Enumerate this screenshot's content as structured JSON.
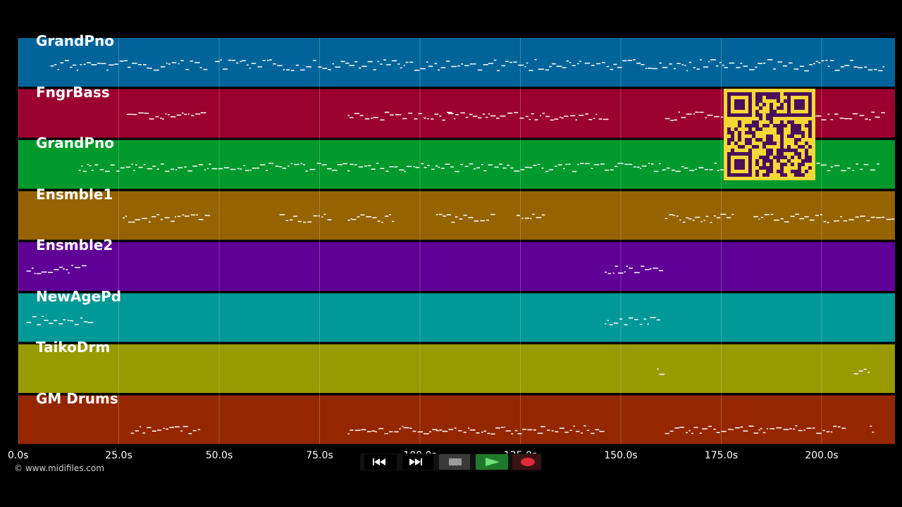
{
  "tracks": [
    {
      "name": "GrandPno",
      "color": "#00649a"
    },
    {
      "name": "FngrBass",
      "color": "#9b0030"
    },
    {
      "name": "GrandPno",
      "color": "#00992b"
    },
    {
      "name": "Ensmble1",
      "color": "#956300"
    },
    {
      "name": "Ensmble2",
      "color": "#5f0096"
    },
    {
      "name": "NewAgePd",
      "color": "#009997"
    },
    {
      "name": "TaikoDrm",
      "color": "#999900"
    },
    {
      "name": "GM Drums",
      "color": "#952700"
    }
  ],
  "timeline": {
    "ticks": [
      "0.0s",
      "25.0s",
      "50.0s",
      "75.0s",
      "100.0s",
      "125.0s",
      "150.0s",
      "175.0s",
      "200.0s"
    ]
  },
  "copyright": "© www.midifiles.com",
  "transport": {
    "rewind": "rewind-icon",
    "fast_forward": "fast-forward-icon",
    "stop": "stop-icon",
    "play": "play-icon",
    "record": "record-icon"
  }
}
